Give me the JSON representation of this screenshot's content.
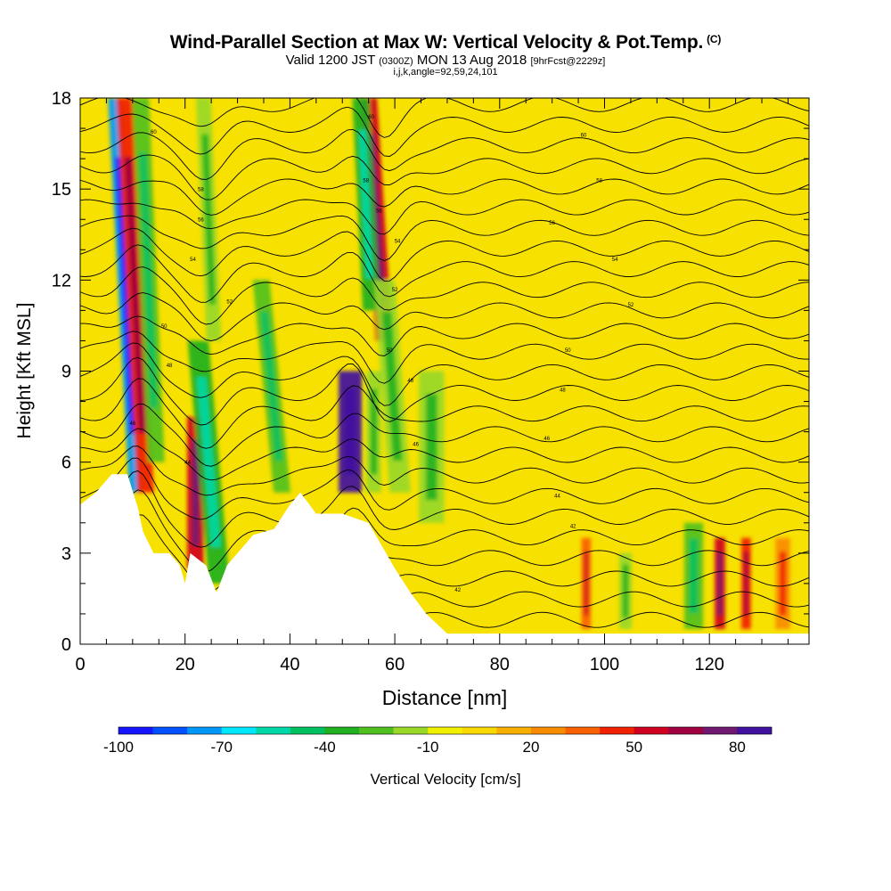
{
  "title": {
    "main": "Wind-Parallel Section at Max W: Vertical Velocity & Pot.Temp.",
    "main_units": "(C)",
    "line2_a": "Valid 1200 JST",
    "line2_b": "(0300Z)",
    "line2_c": "MON 13 Aug 2018",
    "line2_d": "[9hrFcst@2229z]",
    "line3": "i,j,k,angle=92,59,24,101"
  },
  "colors": {
    "terrain": "#ffffff",
    "contour": "#000000",
    "background_fill": "#f7e100"
  },
  "chart_data": {
    "type": "heatmap",
    "xlabel": "Distance [nm]",
    "ylabel": "Height [Kft MSL]",
    "xlim": [
      0,
      139
    ],
    "ylim": [
      0,
      18
    ],
    "x_ticks": [
      "0",
      "20",
      "40",
      "60",
      "80",
      "100",
      "120"
    ],
    "y_ticks": [
      "0",
      "3",
      "6",
      "9",
      "12",
      "15",
      "18"
    ],
    "colorbar": {
      "label": "Vertical Velocity [cm/s]",
      "tick_labels": [
        "-100",
        "-70",
        "-40",
        "-10",
        "20",
        "50",
        "80"
      ],
      "tick_values": [
        -100,
        -70,
        -40,
        -10,
        20,
        50,
        80
      ],
      "min": -100,
      "max": 90,
      "colors": [
        "#1414ff",
        "#0050ff",
        "#0098f8",
        "#00e8ff",
        "#00d8a8",
        "#00c060",
        "#20b020",
        "#50c020",
        "#98d828",
        "#f0f000",
        "#f8d800",
        "#f8b000",
        "#f88c00",
        "#f86000",
        "#f02000",
        "#d00020",
        "#a00040",
        "#701870",
        "#4010a0"
      ]
    },
    "terrain_profile": [
      [
        0,
        4.6
      ],
      [
        3,
        5.0
      ],
      [
        6,
        5.6
      ],
      [
        9,
        5.6
      ],
      [
        11,
        4.5
      ],
      [
        12,
        3.7
      ],
      [
        14,
        3.0
      ],
      [
        17,
        3.0
      ],
      [
        19,
        2.6
      ],
      [
        20,
        2.0
      ],
      [
        21,
        3.0
      ],
      [
        24,
        2.6
      ],
      [
        26,
        1.7
      ],
      [
        28,
        2.6
      ],
      [
        30,
        3.0
      ],
      [
        33,
        3.6
      ],
      [
        37,
        3.8
      ],
      [
        40,
        4.6
      ],
      [
        42,
        5.0
      ],
      [
        45,
        4.3
      ],
      [
        50,
        4.3
      ],
      [
        55,
        4.0
      ],
      [
        60,
        2.5
      ],
      [
        63,
        1.7
      ],
      [
        66,
        1.0
      ],
      [
        70,
        0.35
      ],
      [
        139,
        0.35
      ]
    ],
    "vertical_velocity_features": [
      {
        "x": 10.5,
        "z_bottom": 5.0,
        "z_top": 18,
        "tilt": -4,
        "width": 1.2,
        "value": -80
      },
      {
        "x": 12.5,
        "z_bottom": 5.0,
        "z_top": 18,
        "tilt": -4,
        "width": 1.6,
        "value": 45
      },
      {
        "x": 14.5,
        "z_bottom": 6.0,
        "z_top": 18,
        "tilt": -3,
        "width": 1.6,
        "value": -30
      },
      {
        "x": 22.0,
        "z_bottom": 2.5,
        "z_top": 7.5,
        "tilt": 0,
        "width": 1.6,
        "value": 55
      },
      {
        "x": 26.5,
        "z_bottom": 2.0,
        "z_top": 10,
        "tilt": -4,
        "width": 2.0,
        "value": -35
      },
      {
        "x": 25.5,
        "z_bottom": 10,
        "z_top": 18,
        "tilt": -2,
        "width": 1.4,
        "value": -20
      },
      {
        "x": 38.5,
        "z_bottom": 5.0,
        "z_top": 12,
        "tilt": -4,
        "width": 1.6,
        "value": -30
      },
      {
        "x": 51.5,
        "z_bottom": 5.0,
        "z_top": 9.0,
        "tilt": 0,
        "width": 2.2,
        "value": 80
      },
      {
        "x": 56.0,
        "z_bottom": 5.0,
        "z_top": 9.0,
        "tilt": 0,
        "width": 1.4,
        "value": -20
      },
      {
        "x": 58.0,
        "z_bottom": 10,
        "z_top": 18,
        "tilt": -3,
        "width": 1.6,
        "value": 50
      },
      {
        "x": 55.5,
        "z_bottom": 11,
        "z_top": 18,
        "tilt": -2,
        "width": 1.6,
        "value": -40
      },
      {
        "x": 61.0,
        "z_bottom": 5.0,
        "z_top": 12,
        "tilt": -3,
        "width": 2.0,
        "value": -15
      },
      {
        "x": 67.0,
        "z_bottom": 4.0,
        "z_top": 9.0,
        "tilt": 0,
        "width": 2.4,
        "value": -12
      },
      {
        "x": 122.0,
        "z_bottom": 0.5,
        "z_top": 3.5,
        "tilt": 0,
        "width": 1.0,
        "value": 55
      },
      {
        "x": 127.0,
        "z_bottom": 0.5,
        "z_top": 3.5,
        "tilt": 0,
        "width": 0.9,
        "value": 45
      },
      {
        "x": 117.0,
        "z_bottom": 0.5,
        "z_top": 4.0,
        "tilt": 0,
        "width": 1.8,
        "value": -30
      },
      {
        "x": 96.5,
        "z_bottom": 0.5,
        "z_top": 3.5,
        "tilt": 0,
        "width": 0.9,
        "value": 30
      },
      {
        "x": 104.0,
        "z_bottom": 0.5,
        "z_top": 3.0,
        "tilt": 0,
        "width": 1.2,
        "value": -20
      },
      {
        "x": 134.0,
        "z_bottom": 0.5,
        "z_top": 3.5,
        "tilt": 0,
        "width": 1.4,
        "value": 25
      }
    ],
    "contour_labels": [
      {
        "text": "60",
        "x": 14,
        "z": 16.9
      },
      {
        "text": "58",
        "x": 23,
        "z": 15.0
      },
      {
        "text": "56",
        "x": 23,
        "z": 14.0
      },
      {
        "text": "54",
        "x": 21.5,
        "z": 12.7
      },
      {
        "text": "52",
        "x": 28.5,
        "z": 11.3
      },
      {
        "text": "50",
        "x": 16,
        "z": 10.5
      },
      {
        "text": "48",
        "x": 17,
        "z": 9.2
      },
      {
        "text": "46",
        "x": 10,
        "z": 7.3
      },
      {
        "text": "44",
        "x": 20.5,
        "z": 6.0
      },
      {
        "text": "60",
        "x": 55.5,
        "z": 17.4
      },
      {
        "text": "58",
        "x": 54.5,
        "z": 15.3
      },
      {
        "text": "56",
        "x": 57,
        "z": 14.3
      },
      {
        "text": "54",
        "x": 60.5,
        "z": 13.3
      },
      {
        "text": "52",
        "x": 60,
        "z": 11.7
      },
      {
        "text": "50",
        "x": 59,
        "z": 9.7
      },
      {
        "text": "48",
        "x": 63,
        "z": 8.7
      },
      {
        "text": "46",
        "x": 64,
        "z": 6.6
      },
      {
        "text": "42",
        "x": 72,
        "z": 1.8
      },
      {
        "text": "60",
        "x": 96,
        "z": 16.8
      },
      {
        "text": "58",
        "x": 99,
        "z": 15.3
      },
      {
        "text": "56",
        "x": 90,
        "z": 13.9
      },
      {
        "text": "54",
        "x": 102,
        "z": 12.7
      },
      {
        "text": "52",
        "x": 105,
        "z": 11.2
      },
      {
        "text": "50",
        "x": 93,
        "z": 9.7
      },
      {
        "text": "48",
        "x": 92,
        "z": 8.4
      },
      {
        "text": "46",
        "x": 89,
        "z": 6.8
      },
      {
        "text": "44",
        "x": 91,
        "z": 4.9
      },
      {
        "text": "42",
        "x": 94,
        "z": 3.9
      }
    ]
  }
}
